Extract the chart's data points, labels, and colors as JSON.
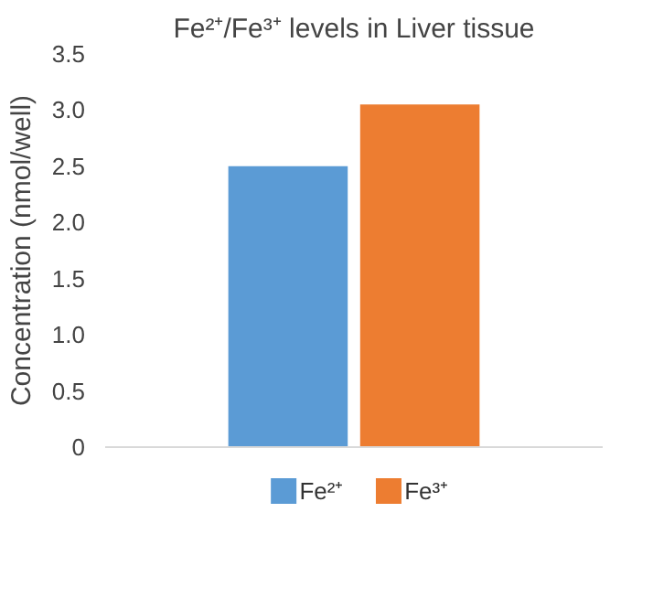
{
  "chart_data": {
    "type": "bar",
    "title": "Fe²⁺/Fe³⁺ levels in Liver tissue",
    "ylabel": "Concentration (nmol/well)",
    "categories": [
      null
    ],
    "series": [
      {
        "name": "Fe²⁺",
        "color": "#5b9bd5",
        "values": [
          2.5
        ]
      },
      {
        "name": "Fe³⁺",
        "color": "#ed7d31",
        "values": [
          3.05
        ]
      }
    ],
    "ylim": [
      0,
      3.5
    ],
    "yticks": [
      0,
      0.5,
      {
        "value": 1,
        "label": "1.0"
      },
      1.5,
      {
        "value": 2,
        "label": "2.0"
      },
      2.5,
      {
        "value": 3,
        "label": "3.0"
      },
      3.5
    ],
    "grid": false,
    "legend": "bottom"
  }
}
